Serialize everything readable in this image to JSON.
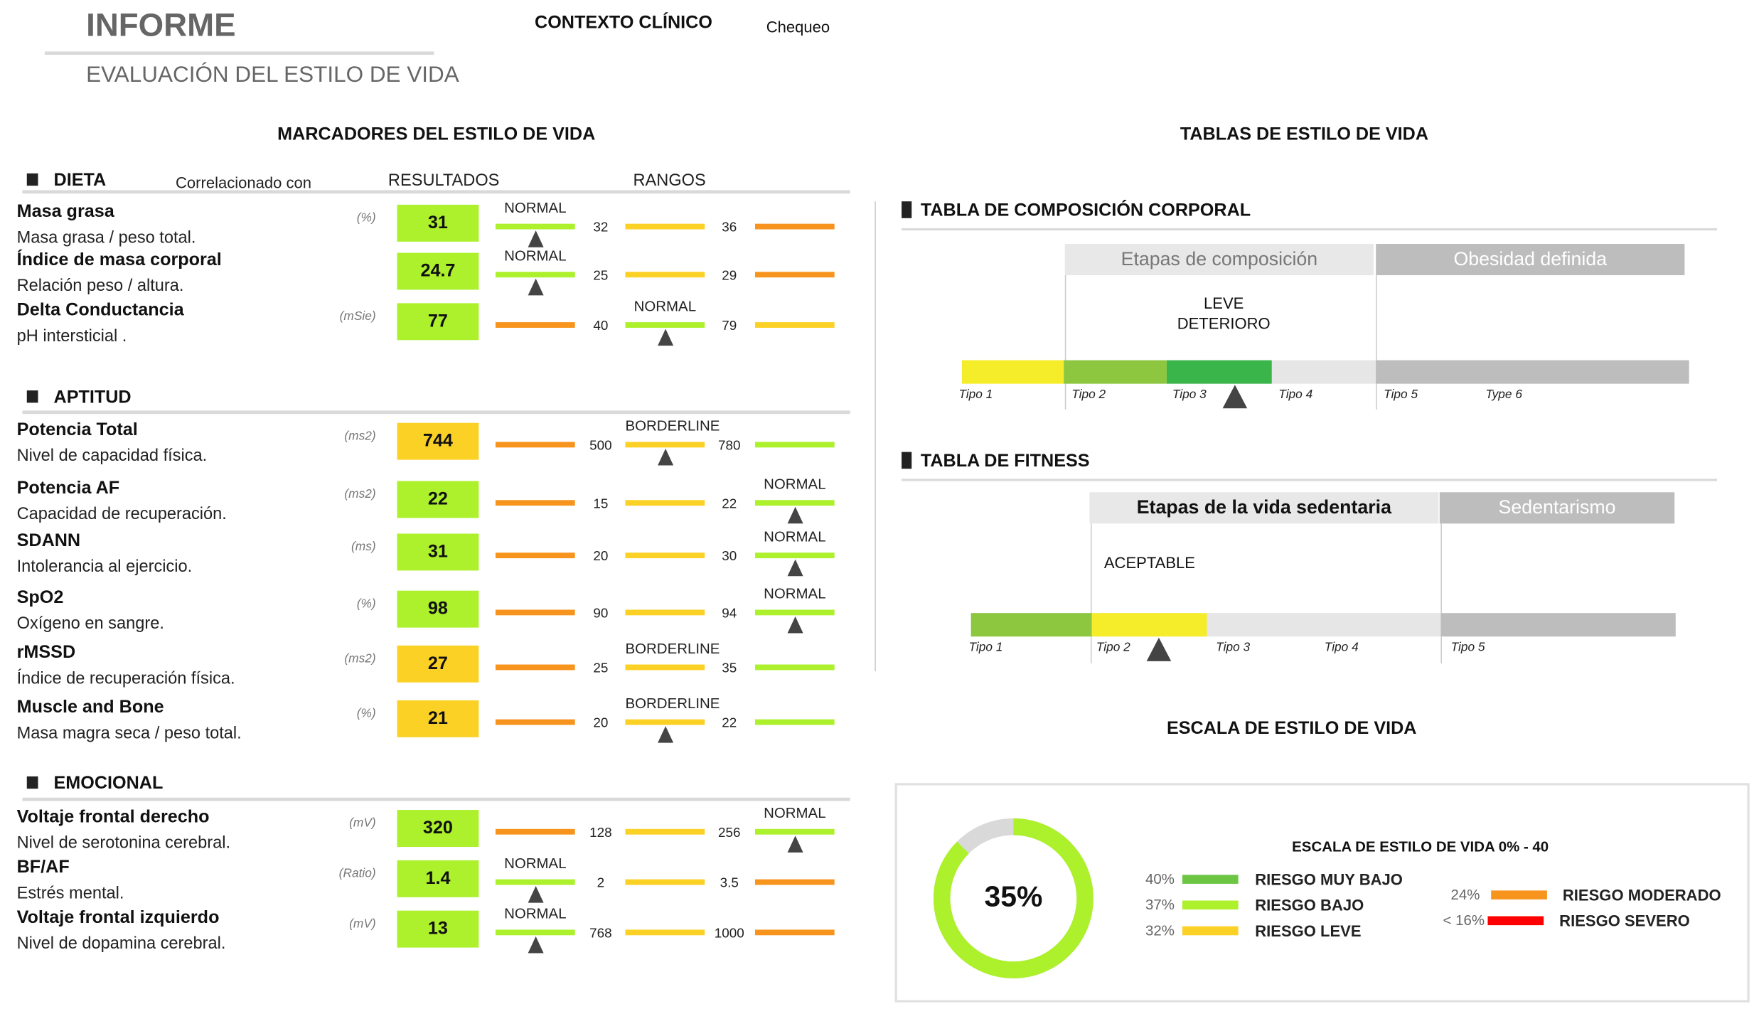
{
  "header": {
    "title": "INFORME",
    "subtitle": "EVALUACIÓN DEL ESTILO DE VIDA",
    "context_label": "CONTEXTO CLÍNICO",
    "context_value": "Chequeo"
  },
  "colors": {
    "orange": "#f7941d",
    "yellow": "#fbd126",
    "green": "#adf02c"
  },
  "markers": {
    "title": "MARCADORES DEL ESTILO DE VIDA",
    "col_correlated": "Correlacionado con",
    "col_results": "RESULTADOS",
    "col_ranges": "RANGOS",
    "sections": [
      {
        "title": "DIETA",
        "rows": [
          {
            "name": "Masa grasa",
            "desc": "Masa grasa / peso total.",
            "unit": "(%)",
            "value": "31",
            "value_color": "green",
            "segments": [
              "green",
              "yellow",
              "orange"
            ],
            "thresholds": [
              "32",
              "36"
            ],
            "status": "NORMAL",
            "status_segment": 0,
            "marker_segment": 0
          },
          {
            "name": "Índice de masa corporal",
            "desc": "Relación peso / altura.",
            "unit": "",
            "value": "24.7",
            "value_color": "green",
            "segments": [
              "green",
              "yellow",
              "orange"
            ],
            "thresholds": [
              "25",
              "29"
            ],
            "status": "NORMAL",
            "status_segment": 0,
            "marker_segment": 0
          },
          {
            "name": "Delta Conductancia",
            "desc": "pH intersticial .",
            "unit": "(mSie)",
            "value": "77",
            "value_color": "green",
            "segments": [
              "orange",
              "green",
              "yellow"
            ],
            "thresholds": [
              "40",
              "79"
            ],
            "status": "NORMAL",
            "status_segment": 1,
            "marker_segment": 1
          }
        ]
      },
      {
        "title": "APTITUD",
        "rows": [
          {
            "name": "Potencia Total",
            "desc": "Nivel de capacidad física.",
            "unit": "(ms2)",
            "value": "744",
            "value_color": "yellow",
            "segments": [
              "orange",
              "yellow",
              "green"
            ],
            "thresholds": [
              "500",
              "780"
            ],
            "status": "BORDERLINE",
            "status_segment": 1,
            "marker_segment": 1
          },
          {
            "name": "Potencia AF",
            "desc": "Capacidad de recuperación.",
            "unit": "(ms2)",
            "value": "22",
            "value_color": "green",
            "segments": [
              "orange",
              "yellow",
              "green"
            ],
            "thresholds": [
              "15",
              "22"
            ],
            "status": "NORMAL",
            "status_segment": 2,
            "marker_segment": 2
          },
          {
            "name": "SDANN",
            "desc": "Intolerancia al ejercicio.",
            "unit": "(ms)",
            "value": "31",
            "value_color": "green",
            "segments": [
              "orange",
              "yellow",
              "green"
            ],
            "thresholds": [
              "20",
              "30"
            ],
            "status": "NORMAL",
            "status_segment": 2,
            "marker_segment": 2
          },
          {
            "name": "SpO2",
            "desc": "Oxígeno en sangre.",
            "unit": "(%)",
            "value": "98",
            "value_color": "green",
            "segments": [
              "orange",
              "yellow",
              "green"
            ],
            "thresholds": [
              "90",
              "94"
            ],
            "status": "NORMAL",
            "status_segment": 2,
            "marker_segment": 2
          },
          {
            "name": "rMSSD",
            "desc": "Índice de recuperación física.",
            "unit": "(ms2)",
            "value": "27",
            "value_color": "yellow",
            "segments": [
              "orange",
              "yellow",
              "green"
            ],
            "thresholds": [
              "25",
              "35"
            ],
            "status": "BORDERLINE",
            "status_segment": 1,
            "marker_segment": null
          },
          {
            "name": "Muscle and Bone",
            "desc": "Masa magra seca / peso total.",
            "unit": "(%)",
            "value": "21",
            "value_color": "yellow",
            "segments": [
              "orange",
              "yellow",
              "green"
            ],
            "thresholds": [
              "20",
              "22"
            ],
            "status": "BORDERLINE",
            "status_segment": 1,
            "marker_segment": 1
          }
        ]
      },
      {
        "title": "EMOCIONAL",
        "rows": [
          {
            "name": "Voltaje frontal derecho",
            "desc": "Nivel de serotonina cerebral.",
            "unit": "(mV)",
            "value": "320",
            "value_color": "green",
            "segments": [
              "orange",
              "yellow",
              "green"
            ],
            "thresholds": [
              "128",
              "256"
            ],
            "status": "NORMAL",
            "status_segment": 2,
            "marker_segment": 2
          },
          {
            "name": "BF/AF",
            "desc": "Estrés mental.",
            "unit": "(Ratio)",
            "value": "1.4",
            "value_color": "green",
            "segments": [
              "green",
              "yellow",
              "orange"
            ],
            "thresholds": [
              "2",
              "3.5"
            ],
            "status": "NORMAL",
            "status_segment": 0,
            "marker_segment": 0
          },
          {
            "name": "Voltaje frontal izquierdo",
            "desc": "Nivel de dopamina cerebral.",
            "unit": "(mV)",
            "value": "13",
            "value_color": "green",
            "segments": [
              "green",
              "yellow",
              "orange"
            ],
            "thresholds": [
              "768",
              "1000"
            ],
            "status": "NORMAL",
            "status_segment": 0,
            "marker_segment": 0
          }
        ]
      }
    ]
  },
  "tables": {
    "title": "TABLAS DE ESTILO DE VIDA",
    "composition": {
      "title": "TABLA DE COMPOSICIÓN CORPORAL",
      "stage_header": "Etapas de composición",
      "alt_header": "Obesidad definida",
      "result": "LEVE DETERIORO",
      "types": [
        "Tipo 1",
        "Tipo 2",
        "Tipo 3",
        "Tipo 4",
        "Tipo 5",
        "Type 6"
      ],
      "bar_colors": [
        "#f5ec2a",
        "#8dc63f",
        "#39b54a",
        "#e6e6e6",
        "#bdbdbd"
      ],
      "marker_type": "Tipo 3"
    },
    "fitness": {
      "title": "TABLA DE FITNESS",
      "stage_header": "Etapas de la vida sedentaria",
      "alt_header": "Sedentarismo",
      "result": "ACEPTABLE",
      "types": [
        "Tipo 1",
        "Tipo 2",
        "Tipo 3",
        "Tipo 4",
        "Tipo 5"
      ],
      "bar_colors": [
        "#8dc63f",
        "#f5ec2a",
        "#e6e6e6",
        "#bdbdbd"
      ],
      "marker_type": "Tipo 2"
    }
  },
  "scale": {
    "title": "ESCALA DE ESTILO DE VIDA",
    "gauge_value": 35,
    "gauge_max": 40,
    "gauge_label": "35%",
    "gauge_color": "#adf02c",
    "gauge_track": "#d9d9d9",
    "legend_title": "ESCALA DE ESTILO DE VIDA 0% - 40",
    "legend": [
      {
        "pct": "40%",
        "label": "RIESGO MUY BAJO",
        "color": "#6cc644"
      },
      {
        "pct": "37%",
        "label": "RIESGO BAJO",
        "color": "#adf02c"
      },
      {
        "pct": "32%",
        "label": "RIESGO LEVE",
        "color": "#fbd126"
      },
      {
        "pct": "24%",
        "label": "RIESGO MODERADO",
        "color": "#f7941d"
      },
      {
        "pct": "< 16%",
        "label": "RIESGO SEVERO",
        "color": "#ff0000"
      }
    ]
  }
}
